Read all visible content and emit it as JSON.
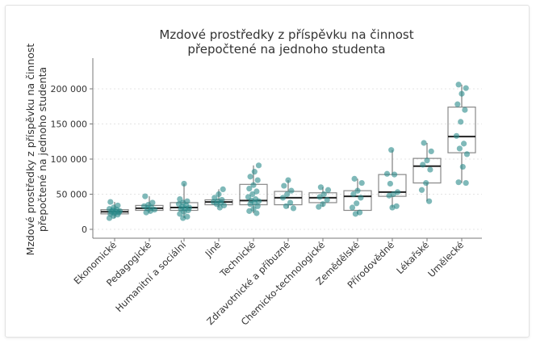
{
  "chart_data": {
    "type": "box",
    "title": [
      "Mzdové prostředky z příspěvku na činnost",
      "přepočtené na jednoho studenta"
    ],
    "ylabel": [
      "Mzdové prostředky z příspěvku na činnost",
      "přepočtené na jednoho studenta"
    ],
    "xlabel": "",
    "ylim": [
      0,
      230000
    ],
    "yticks": [
      0,
      50000,
      100000,
      150000,
      200000
    ],
    "ytick_labels": [
      "0",
      "50 000",
      "100 000",
      "150 000",
      "200 000"
    ],
    "grid": "horizontal dotted",
    "colors": {
      "points": "#2a8a8a",
      "box": "#888888",
      "median": "#222222"
    },
    "categories": [
      "Ekonomické",
      "Pedagogické",
      "Humanitní a sociální",
      "Jiné",
      "Technické",
      "Zdravotnické a příbuzné",
      "Chemicko-technologické",
      "Zemědělské",
      "Přírodovědné",
      "Lékařské",
      "Umělecké"
    ],
    "boxes": [
      {
        "min": 16000,
        "q1": 22000,
        "median": 25000,
        "q3": 28000,
        "max": 39000,
        "points": [
          16000,
          19000,
          21000,
          22000,
          23000,
          24000,
          25000,
          25500,
          26000,
          27000,
          28000,
          29000,
          31000,
          34000,
          39000
        ]
      },
      {
        "min": 24000,
        "q1": 27000,
        "median": 30000,
        "q3": 34000,
        "max": 47000,
        "points": [
          24000,
          26000,
          28000,
          30000,
          31000,
          33000,
          35000,
          38000,
          47000
        ]
      },
      {
        "min": 16000,
        "q1": 27000,
        "median": 31000,
        "q3": 38000,
        "max": 65000,
        "points": [
          16000,
          18000,
          22000,
          25000,
          27000,
          29000,
          30000,
          31000,
          32000,
          34000,
          36000,
          38000,
          40000,
          43000,
          65000
        ]
      },
      {
        "min": 31000,
        "q1": 35000,
        "median": 39000,
        "q3": 42000,
        "max": 57000,
        "points": [
          31000,
          34000,
          36000,
          38000,
          39000,
          40000,
          42000,
          45000,
          50000,
          57000
        ]
      },
      {
        "min": 23000,
        "q1": 35000,
        "median": 41000,
        "q3": 64000,
        "max": 91000,
        "points": [
          23000,
          26000,
          29000,
          33000,
          36000,
          38000,
          40000,
          41000,
          43000,
          46000,
          50000,
          54000,
          58000,
          63000,
          70000,
          75000,
          82000,
          91000
        ]
      },
      {
        "min": 30000,
        "q1": 35000,
        "median": 45000,
        "q3": 54000,
        "max": 70000,
        "points": [
          30000,
          33000,
          38000,
          45000,
          50000,
          55000,
          62000,
          70000
        ]
      },
      {
        "min": 32000,
        "q1": 38000,
        "median": 45000,
        "q3": 52000,
        "max": 60000,
        "points": [
          32000,
          36000,
          42000,
          46000,
          50000,
          56000,
          60000
        ]
      },
      {
        "min": 22000,
        "q1": 27000,
        "median": 47000,
        "q3": 55000,
        "max": 72000,
        "points": [
          22000,
          24000,
          31000,
          37000,
          45000,
          50000,
          55000,
          66000,
          72000
        ]
      },
      {
        "min": 31000,
        "q1": 47000,
        "median": 53000,
        "q3": 78000,
        "max": 113000,
        "points": [
          31000,
          33000,
          48000,
          50000,
          53000,
          65000,
          78000,
          79000,
          113000
        ]
      },
      {
        "min": 40000,
        "q1": 66000,
        "median": 90000,
        "q3": 101000,
        "max": 123000,
        "points": [
          40000,
          56000,
          66000,
          85000,
          92000,
          98000,
          111000,
          123000
        ]
      },
      {
        "min": 66000,
        "q1": 109000,
        "median": 132000,
        "q3": 174000,
        "max": 206000,
        "points": [
          66000,
          67000,
          89000,
          107000,
          115000,
          122000,
          133000,
          153000,
          170000,
          178000,
          193000,
          201000,
          206000
        ]
      }
    ]
  }
}
